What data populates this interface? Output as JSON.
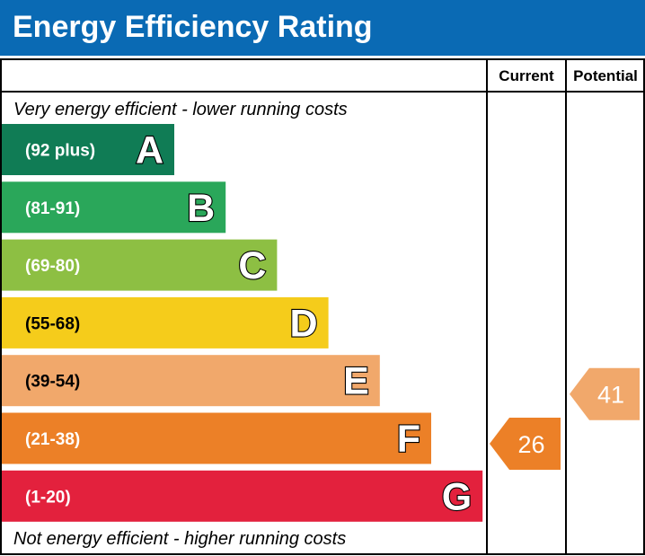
{
  "title": "Energy Efficiency Rating",
  "columns": {
    "current": "Current",
    "potential": "Potential"
  },
  "top_note": "Very energy efficient - lower running costs",
  "bottom_note": "Not energy efficient - higher running costs",
  "chart_data": {
    "type": "bar",
    "categories": [
      "A",
      "B",
      "C",
      "D",
      "E",
      "F",
      "G"
    ],
    "bands": [
      {
        "letter": "A",
        "range": "(92 plus)",
        "min": 92,
        "max": 100,
        "color": "#107c55"
      },
      {
        "letter": "B",
        "range": "(81-91)",
        "min": 81,
        "max": 91,
        "color": "#2aa75a"
      },
      {
        "letter": "C",
        "range": "(69-80)",
        "min": 69,
        "max": 80,
        "color": "#8dbf43"
      },
      {
        "letter": "D",
        "range": "(55-68)",
        "min": 55,
        "max": 68,
        "color": "#f5cc1b"
      },
      {
        "letter": "E",
        "range": "(39-54)",
        "min": 39,
        "max": 54,
        "color": "#f1a86b"
      },
      {
        "letter": "F",
        "range": "(21-38)",
        "min": 21,
        "max": 38,
        "color": "#ec8027"
      },
      {
        "letter": "G",
        "range": "(1-20)",
        "min": 1,
        "max": 20,
        "color": "#e3213d"
      }
    ],
    "current": {
      "value": 26,
      "band": "F",
      "color": "#ec8027"
    },
    "potential": {
      "value": 41,
      "band": "E",
      "color": "#f1a86b"
    }
  }
}
